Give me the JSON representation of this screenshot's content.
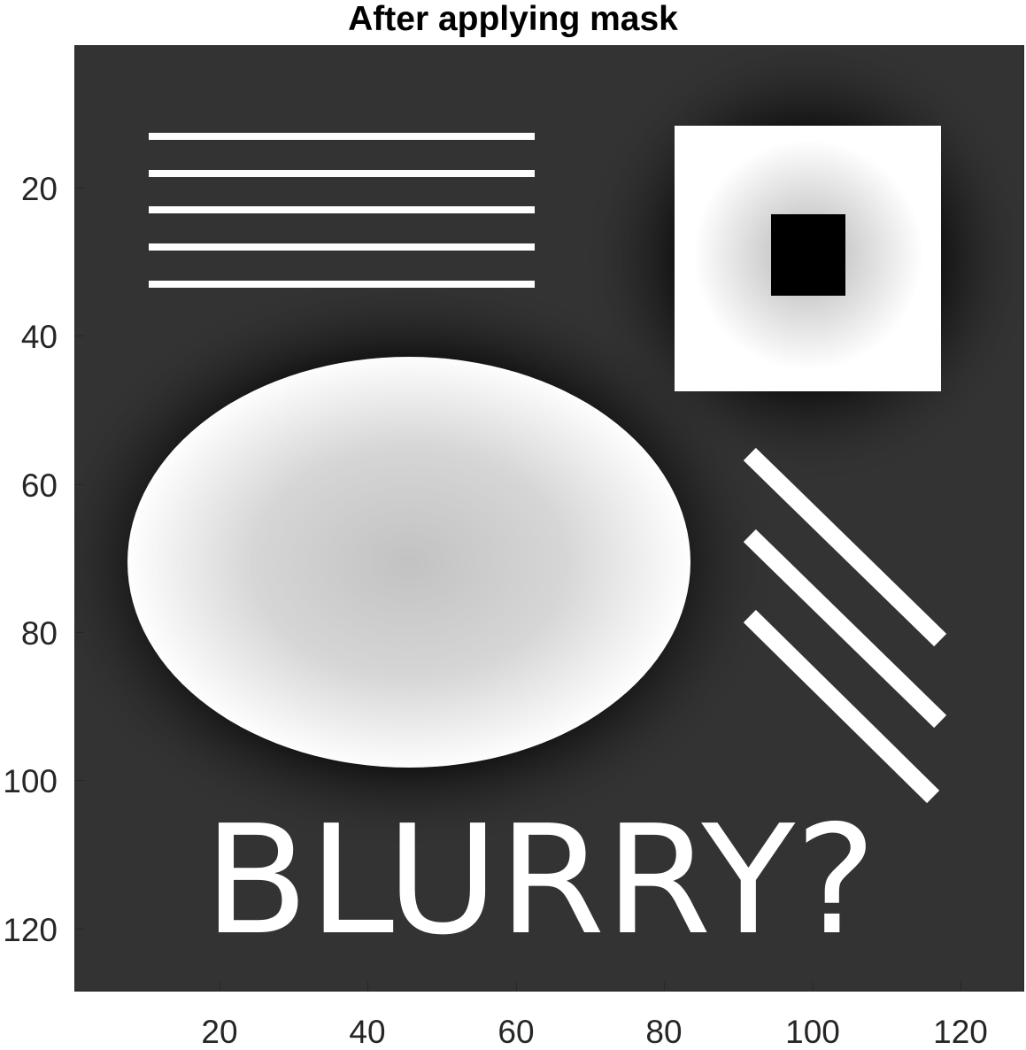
{
  "figure": {
    "title": "After applying mask",
    "image_text": "BLURRY?",
    "x_ticks": [
      "20",
      "40",
      "60",
      "80",
      "100",
      "120"
    ],
    "y_ticks": [
      "20",
      "40",
      "60",
      "80",
      "100",
      "120"
    ],
    "colormap": "gray",
    "colors": {
      "background_gray": "#333333",
      "halo_black": "#000000",
      "white": "#ffffff",
      "ellipse_center": "#c4c4c4",
      "axis_text": "#262626"
    }
  },
  "chart_data": {
    "type": "image",
    "title": "After applying mask",
    "xlim": [
      0.5,
      128.5
    ],
    "ylim": [
      0.5,
      128.5
    ],
    "y_direction": "reverse",
    "x_ticks": [
      20,
      40,
      60,
      80,
      100,
      120
    ],
    "y_ticks": [
      20,
      40,
      60,
      80,
      100,
      120
    ],
    "objects": [
      {
        "kind": "horizontal_lines",
        "count": 5,
        "x_range": [
          11,
          62
        ],
        "y": [
          13,
          18,
          23,
          28,
          33
        ],
        "intensity": "white"
      },
      {
        "kind": "square",
        "x_range": [
          82,
          117
        ],
        "y_range": [
          12,
          47
        ],
        "intensity": "white"
      },
      {
        "kind": "inner_square",
        "x_range": [
          94,
          104
        ],
        "y_range": [
          24,
          34
        ],
        "intensity": "black"
      },
      {
        "kind": "ellipse",
        "center": [
          47,
          70
        ],
        "semi_axes": [
          38,
          28
        ],
        "edge_intensity": "white",
        "center_intensity": "light gray"
      },
      {
        "kind": "diagonal_lines",
        "count": 3,
        "start_x": 92,
        "end_x": 117,
        "start_y": [
          56,
          67,
          78
        ],
        "end_y": [
          81,
          92,
          102
        ],
        "intensity": "white"
      },
      {
        "kind": "text",
        "text": "BLURRY?",
        "x_range": [
          18,
          108
        ],
        "y_range": [
          106,
          121
        ],
        "intensity": "white"
      }
    ]
  }
}
